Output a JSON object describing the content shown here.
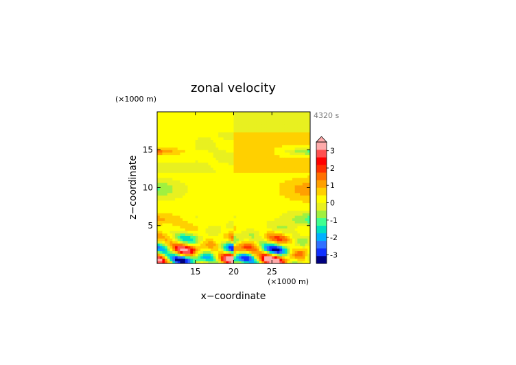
{
  "chart_data": {
    "type": "heatmap",
    "title": "zonal velocity",
    "time_label": "4320 s",
    "xlabel": "x−coordinate",
    "ylabel": "z−coordinate",
    "x_unit": "(×1000 m)",
    "y_unit": "(×1000 m)",
    "xlim": [
      10,
      30
    ],
    "ylim": [
      0,
      20
    ],
    "x_ticks": [
      15,
      20,
      25
    ],
    "y_ticks": [
      5,
      10,
      15
    ],
    "colorbar": {
      "ticks": [
        3,
        2,
        1,
        0,
        -1,
        -2,
        -3
      ],
      "range": [
        -3.5,
        3.5
      ],
      "extend": "max",
      "colors": [
        "#000080",
        "#1030ff",
        "#3070ff",
        "#00b0ff",
        "#00e0c0",
        "#40ff90",
        "#a0f040",
        "#e8f020",
        "#ffff00",
        "#ffd000",
        "#ffa000",
        "#ff7000",
        "#ff3000",
        "#ff0000",
        "#ff5050",
        "#ffaaaa"
      ]
    },
    "field_description": "alternating banded structure aloft, strong small-scale oscillations in lowest ~6 km",
    "grid": false
  }
}
